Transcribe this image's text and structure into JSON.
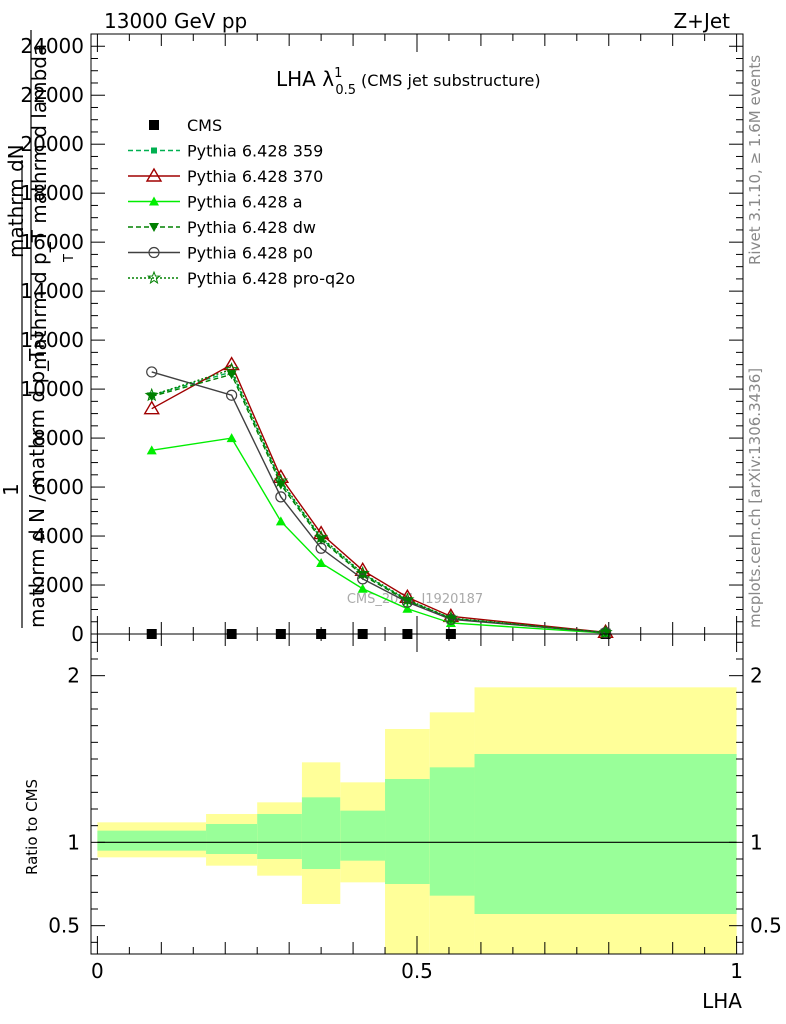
{
  "header": {
    "energy_label": "13000 GeV pp",
    "process_label": "Z+Jet"
  },
  "side_labels": {
    "rivet": "Rivet 3.1.10, ≥ 1.6M events",
    "mcplots": "mcplots.cern.ch [arXiv:1306.3436]"
  },
  "colors": {
    "cms": "#000000",
    "p359": "#00b050",
    "p370": "#a00000",
    "pa": "#00ee00",
    "pdw": "#008000",
    "pp0": "#404040",
    "pq2o": "#008000",
    "band_yellow": "#ffff99",
    "band_green": "#99ff99"
  },
  "chart_data": [
    {
      "type": "line",
      "panel": "main",
      "title_main": "LHA λ",
      "title_sup": "1",
      "title_sub": "0.5",
      "title_suffix": "(CMS jet substructure)",
      "ylabel_numerator_lines": [
        "mathrm dN",
        "mathrm d p_T mathrm d lambda"
      ],
      "ylabel_numerator_sub": "T",
      "ylabel_leading": "1",
      "ylabel_denominator": "mathrm d N / mathrm d p_T",
      "ylim": [
        0,
        24500
      ],
      "xlim": [
        -0.01,
        1.01
      ],
      "yticks": [
        0,
        2000,
        4000,
        6000,
        8000,
        10000,
        12000,
        14000,
        16000,
        18000,
        20000,
        22000,
        24000
      ],
      "ytick_labels": [
        "0",
        "2000",
        "4000",
        "6000",
        "8000",
        "10000",
        "12000",
        "14000",
        "16000",
        "18000",
        "20000",
        "22000",
        "24000"
      ],
      "watermark": "CMS_2021_I1920187",
      "legend_position": "top-left",
      "x": [
        0.085,
        0.21,
        0.287,
        0.35,
        0.415,
        0.485,
        0.553,
        0.795
      ],
      "series": [
        {
          "name": "CMS",
          "style": "cms",
          "values": [
            0,
            0,
            0,
            0,
            0,
            0,
            0,
            0
          ]
        },
        {
          "name": "Pythia 6.428 359",
          "style": "p359",
          "values": [
            9750,
            10700,
            6200,
            3900,
            2450,
            1380,
            640,
            60
          ]
        },
        {
          "name": "Pythia 6.428 370",
          "style": "p370",
          "values": [
            9200,
            11000,
            6400,
            4100,
            2600,
            1500,
            720,
            70
          ]
        },
        {
          "name": "Pythia 6.428 a",
          "style": "pa",
          "values": [
            7500,
            8000,
            4600,
            2900,
            1850,
            1030,
            450,
            40
          ]
        },
        {
          "name": "Pythia 6.428 dw",
          "style": "pdw",
          "values": [
            9700,
            10600,
            6100,
            3850,
            2400,
            1350,
            620,
            60
          ]
        },
        {
          "name": "Pythia 6.428 p0",
          "style": "pp0",
          "values": [
            10700,
            9750,
            5600,
            3500,
            2250,
            1300,
            600,
            55
          ]
        },
        {
          "name": "Pythia 6.428 pro-q2o",
          "style": "pq2o",
          "values": [
            9750,
            10800,
            6250,
            3950,
            2480,
            1400,
            650,
            62
          ]
        }
      ]
    },
    {
      "type": "area",
      "panel": "ratio",
      "ylabel": "Ratio to CMS",
      "xlabel": "LHA",
      "xlim": [
        -0.01,
        1.01
      ],
      "ylim": [
        0.33,
        2.25
      ],
      "xticks": [
        0,
        0.5,
        1
      ],
      "xtick_labels": [
        "0",
        "0.5",
        "1"
      ],
      "yticks": [
        0.5,
        1,
        2
      ],
      "ytick_labels": [
        "0.5",
        "1",
        "2"
      ],
      "bin_edges": [
        0,
        0.17,
        0.25,
        0.32,
        0.38,
        0.45,
        0.52,
        0.59,
        1.0
      ],
      "yellow_low": [
        0.91,
        0.86,
        0.8,
        0.63,
        0.76,
        0.33,
        0.33,
        0.33
      ],
      "yellow_high": [
        1.12,
        1.17,
        1.24,
        1.48,
        1.36,
        1.68,
        1.78,
        1.93
      ],
      "green_low": [
        0.95,
        0.93,
        0.9,
        0.84,
        0.89,
        0.75,
        0.68,
        0.57
      ],
      "green_high": [
        1.07,
        1.11,
        1.17,
        1.27,
        1.19,
        1.38,
        1.45,
        1.53
      ],
      "reference_line": 1
    }
  ]
}
